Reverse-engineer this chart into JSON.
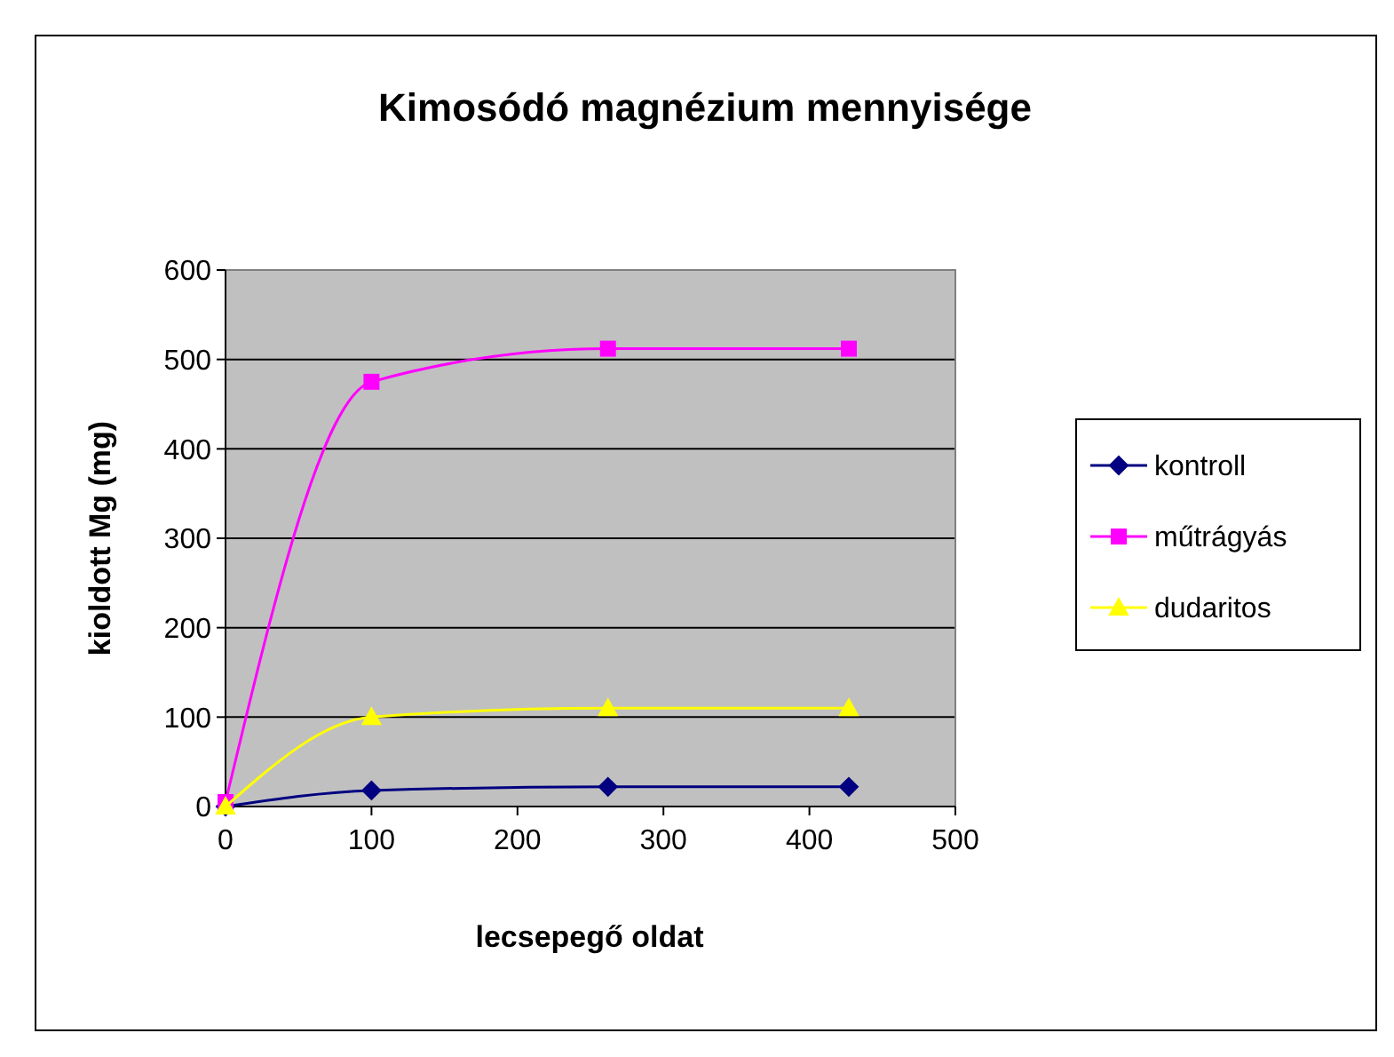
{
  "chart_data": {
    "type": "line",
    "title": "Kimosódó magnézium mennyisége",
    "xlabel": "lecsepegő oldat",
    "ylabel": "kioldott Mg (mg)",
    "xlim": [
      0,
      500
    ],
    "xticks": [
      0,
      100,
      200,
      300,
      400,
      500
    ],
    "ylim": [
      0,
      600
    ],
    "yticks": [
      0,
      100,
      200,
      300,
      400,
      500,
      600
    ],
    "grid": "y",
    "legend": "right",
    "series": [
      {
        "name": "kontroll",
        "color": "#000080",
        "marker": "diamond",
        "x": [
          0,
          100,
          262,
          427
        ],
        "values": [
          0,
          18,
          22,
          22
        ]
      },
      {
        "name": "műtrágyás",
        "color": "#ff00ff",
        "marker": "square",
        "x": [
          0,
          100,
          262,
          427
        ],
        "values": [
          5,
          475,
          512,
          512
        ]
      },
      {
        "name": "dudaritos",
        "color": "#ffff00",
        "marker": "triangle",
        "x": [
          0,
          100,
          262,
          427
        ],
        "values": [
          0,
          100,
          110,
          110
        ]
      }
    ]
  }
}
